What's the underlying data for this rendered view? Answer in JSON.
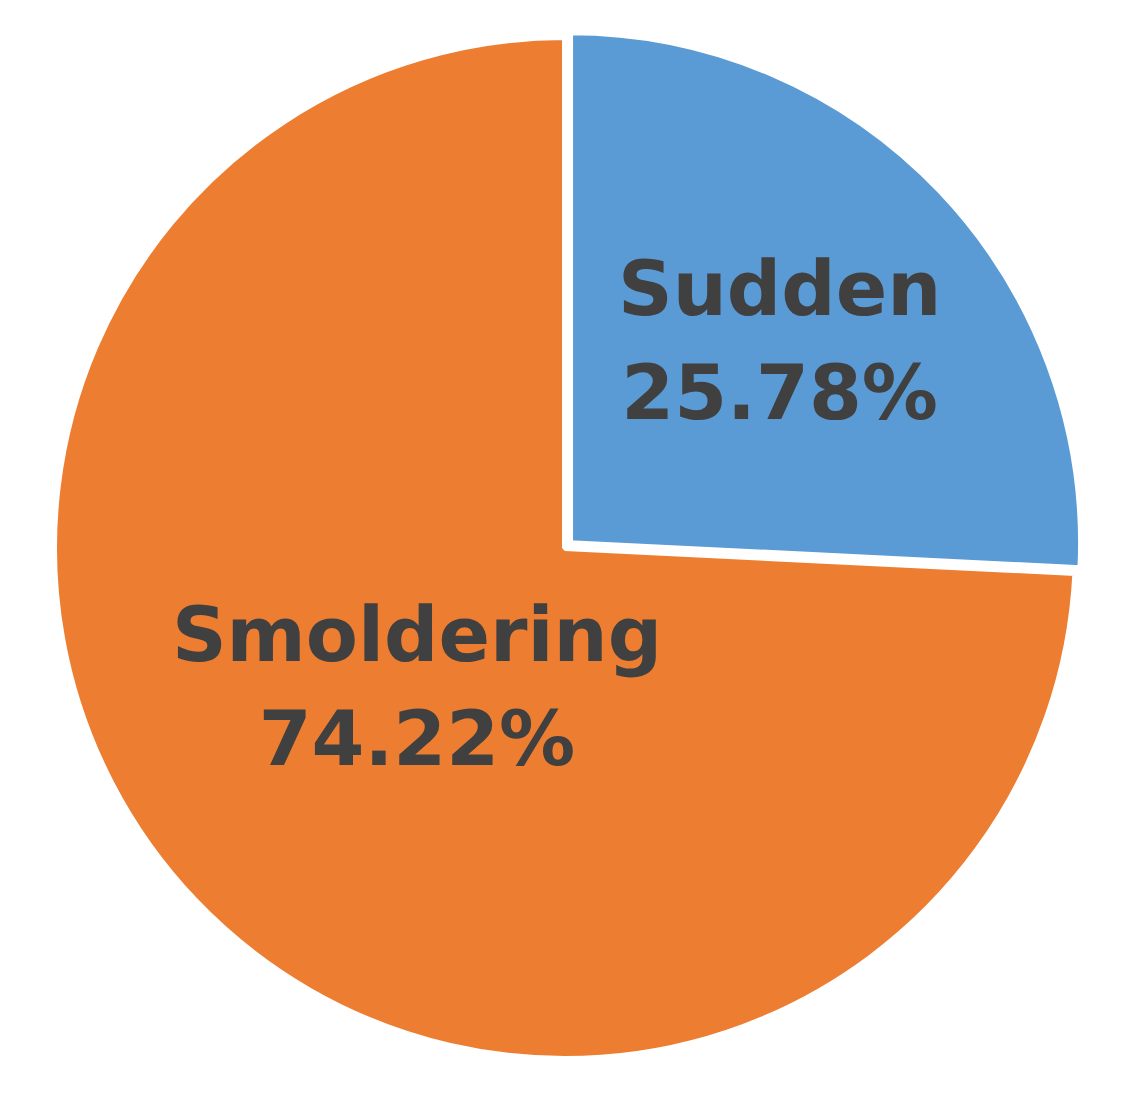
{
  "chart_data": {
    "type": "pie",
    "categories": [
      "Sudden",
      "Smoldering"
    ],
    "values": [
      25.78,
      74.22
    ],
    "colors": [
      "#5b9bd5",
      "#ed7d31"
    ],
    "value_labels": [
      "25.78%",
      "74.22%"
    ],
    "legend": false
  }
}
